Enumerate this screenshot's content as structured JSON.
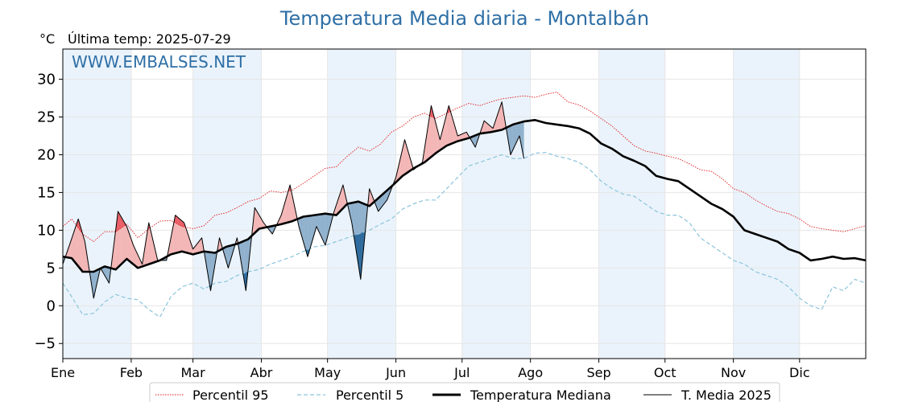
{
  "title": "Temperatura Media diaria - Montalbán",
  "y_unit": "°C",
  "last_temp": "Última temp: 2025-07-29",
  "watermark": "WWW.EMBALSES.NET",
  "colors": {
    "title": "#2e6fa6",
    "p95": "#e31a1c",
    "p5": "#8cc4dc",
    "median": "#000000",
    "current": "#000000",
    "above_fill": "#f4b6b6",
    "above_extreme": "#e8505a",
    "below_fill": "#8fb0cc",
    "below_extreme": "#1f5f96",
    "band": "#eaf3fb"
  },
  "chart_data": {
    "type": "line",
    "xlabel": "",
    "ylabel": "",
    "ylim": [
      -7,
      34
    ],
    "yticks": [
      -5,
      0,
      5,
      10,
      15,
      20,
      25,
      30
    ],
    "xlim": [
      1,
      365
    ],
    "x_ticks": [
      {
        "label": "Ene",
        "day": 1
      },
      {
        "label": "Feb",
        "day": 32
      },
      {
        "label": "Mar",
        "day": 60
      },
      {
        "label": "Abr",
        "day": 91
      },
      {
        "label": "May",
        "day": 121
      },
      {
        "label": "Jun",
        "day": 152
      },
      {
        "label": "Jul",
        "day": 182
      },
      {
        "label": "Ago",
        "day": 213
      },
      {
        "label": "Sep",
        "day": 244
      },
      {
        "label": "Oct",
        "day": 274
      },
      {
        "label": "Nov",
        "day": 305
      },
      {
        "label": "Dic",
        "day": 335
      }
    ],
    "shaded_months": [
      [
        1,
        32
      ],
      [
        60,
        91
      ],
      [
        121,
        152
      ],
      [
        182,
        213
      ],
      [
        244,
        274
      ],
      [
        305,
        335
      ]
    ],
    "grid": true,
    "legend_position": "bottom",
    "series": [
      {
        "name": "Percentil 95",
        "style": "dotted",
        "x": [
          1,
          5,
          10,
          15,
          20,
          25,
          30,
          35,
          40,
          45,
          50,
          55,
          60,
          65,
          70,
          75,
          80,
          85,
          90,
          95,
          100,
          105,
          110,
          115,
          120,
          125,
          130,
          135,
          140,
          145,
          150,
          155,
          160,
          165,
          170,
          175,
          180,
          185,
          190,
          195,
          200,
          205,
          210,
          215,
          220,
          225,
          230,
          235,
          240,
          245,
          250,
          255,
          260,
          265,
          270,
          275,
          280,
          285,
          290,
          295,
          300,
          305,
          310,
          315,
          320,
          325,
          330,
          335,
          340,
          345,
          350,
          355,
          360,
          365
        ],
        "values": [
          10.5,
          11.5,
          9.5,
          8.5,
          9.8,
          9.8,
          10.8,
          9.0,
          10.2,
          11.2,
          11.3,
          10.5,
          10.2,
          10.6,
          12.0,
          12.3,
          13.0,
          13.8,
          14.2,
          15.2,
          15.0,
          15.3,
          16.2,
          17.2,
          18.2,
          18.4,
          19.8,
          21.0,
          20.5,
          21.4,
          23.0,
          23.8,
          25.0,
          25.5,
          24.8,
          25.5,
          26.2,
          26.8,
          26.5,
          27.0,
          27.4,
          27.6,
          27.8,
          27.6,
          28.0,
          28.3,
          27.0,
          26.6,
          25.8,
          24.8,
          23.8,
          22.5,
          21.2,
          20.5,
          20.2,
          19.8,
          19.5,
          18.8,
          18.0,
          17.8,
          16.8,
          15.5,
          15.0,
          14.0,
          13.2,
          12.5,
          12.2,
          11.5,
          10.5,
          10.2,
          10.0,
          9.8,
          10.2,
          10.6
        ]
      },
      {
        "name": "Percentil 5",
        "style": "dashed",
        "x": [
          1,
          5,
          10,
          15,
          20,
          25,
          30,
          35,
          40,
          45,
          50,
          55,
          60,
          65,
          70,
          75,
          80,
          85,
          90,
          95,
          100,
          105,
          110,
          115,
          120,
          125,
          130,
          135,
          140,
          145,
          150,
          155,
          160,
          165,
          170,
          175,
          180,
          185,
          190,
          195,
          200,
          205,
          210,
          215,
          220,
          225,
          230,
          235,
          240,
          245,
          250,
          255,
          260,
          265,
          270,
          275,
          280,
          285,
          290,
          295,
          300,
          305,
          310,
          315,
          320,
          325,
          330,
          335,
          340,
          345,
          350,
          355,
          360,
          365
        ],
        "values": [
          3.0,
          1.2,
          -1.2,
          -1.0,
          0.5,
          1.5,
          1.0,
          0.8,
          -0.5,
          -1.5,
          1.2,
          2.5,
          3.0,
          2.2,
          3.0,
          3.2,
          4.0,
          4.5,
          4.8,
          5.5,
          6.0,
          6.5,
          7.2,
          7.8,
          8.0,
          8.5,
          9.0,
          9.5,
          10.0,
          10.8,
          11.5,
          12.8,
          13.5,
          14.0,
          14.0,
          15.5,
          17.0,
          18.5,
          19.0,
          19.5,
          20.0,
          19.5,
          19.5,
          20.2,
          20.3,
          19.8,
          19.5,
          19.0,
          18.0,
          16.5,
          15.5,
          14.8,
          14.5,
          13.5,
          12.5,
          12.0,
          12.0,
          11.0,
          9.0,
          8.0,
          7.0,
          6.0,
          5.5,
          4.5,
          4.0,
          3.5,
          2.5,
          1.0,
          0.0,
          -0.5,
          2.5,
          2.0,
          3.5,
          3.0
        ]
      },
      {
        "name": "Temperatura Mediana",
        "style": "solid-bold",
        "x": [
          1,
          5,
          10,
          15,
          20,
          25,
          30,
          35,
          40,
          45,
          50,
          55,
          60,
          65,
          70,
          75,
          80,
          85,
          90,
          95,
          100,
          105,
          110,
          115,
          120,
          125,
          130,
          135,
          140,
          145,
          150,
          155,
          160,
          165,
          170,
          175,
          180,
          185,
          190,
          195,
          200,
          205,
          210,
          215,
          220,
          225,
          230,
          235,
          240,
          245,
          250,
          255,
          260,
          265,
          270,
          275,
          280,
          285,
          290,
          295,
          300,
          305,
          310,
          315,
          320,
          325,
          330,
          335,
          340,
          345,
          350,
          355,
          360,
          365
        ],
        "values": [
          6.5,
          6.3,
          4.5,
          4.5,
          5.2,
          4.8,
          6.2,
          5.0,
          5.5,
          6.0,
          6.8,
          7.2,
          6.8,
          7.2,
          7.0,
          7.8,
          8.2,
          8.8,
          10.2,
          10.5,
          10.8,
          11.2,
          11.8,
          12.0,
          12.2,
          12.0,
          13.5,
          13.8,
          13.2,
          14.5,
          15.8,
          17.2,
          18.2,
          19.0,
          20.2,
          21.2,
          21.8,
          22.2,
          22.8,
          23.0,
          23.3,
          24.0,
          24.4,
          24.6,
          24.2,
          24.0,
          23.8,
          23.5,
          22.8,
          21.5,
          20.8,
          19.8,
          19.2,
          18.5,
          17.2,
          16.8,
          16.5,
          15.5,
          14.5,
          13.5,
          12.8,
          11.8,
          10.0,
          9.5,
          9.0,
          8.5,
          7.5,
          7.0,
          6.0,
          6.2,
          6.5,
          6.2,
          6.3,
          6.0
        ]
      },
      {
        "name": "T. Media 2025",
        "style": "solid-thin",
        "x": [
          1,
          4,
          8,
          11,
          15,
          18,
          22,
          26,
          30,
          33,
          37,
          40,
          44,
          48,
          52,
          56,
          60,
          64,
          68,
          72,
          76,
          80,
          84,
          88,
          92,
          96,
          100,
          104,
          108,
          112,
          116,
          120,
          124,
          128,
          132,
          136,
          140,
          144,
          148,
          152,
          156,
          160,
          164,
          168,
          172,
          176,
          180,
          184,
          188,
          192,
          196,
          200,
          204,
          208,
          210
        ],
        "values": [
          5.5,
          8.0,
          11.5,
          8.5,
          1.0,
          5.0,
          3.0,
          12.5,
          10.5,
          8.0,
          5.5,
          11.0,
          6.0,
          6.0,
          12.0,
          11.0,
          7.5,
          9.0,
          2.0,
          9.0,
          5.0,
          9.0,
          2.0,
          13.0,
          11.0,
          9.5,
          12.0,
          16.0,
          10.5,
          6.5,
          10.5,
          8.0,
          12.5,
          16.0,
          11.0,
          3.5,
          15.5,
          12.5,
          14.0,
          17.0,
          22.0,
          18.0,
          19.0,
          26.5,
          22.0,
          26.5,
          22.5,
          23.0,
          21.0,
          24.5,
          23.5,
          27.0,
          20.0,
          22.5,
          19.5
        ]
      }
    ]
  },
  "legend": [
    {
      "label": "Percentil 95",
      "style": "dotted"
    },
    {
      "label": "Percentil 5",
      "style": "dashed"
    },
    {
      "label": "Temperatura Mediana",
      "style": "solid-bold"
    },
    {
      "label": "T. Media 2025",
      "style": "solid-thin"
    }
  ]
}
